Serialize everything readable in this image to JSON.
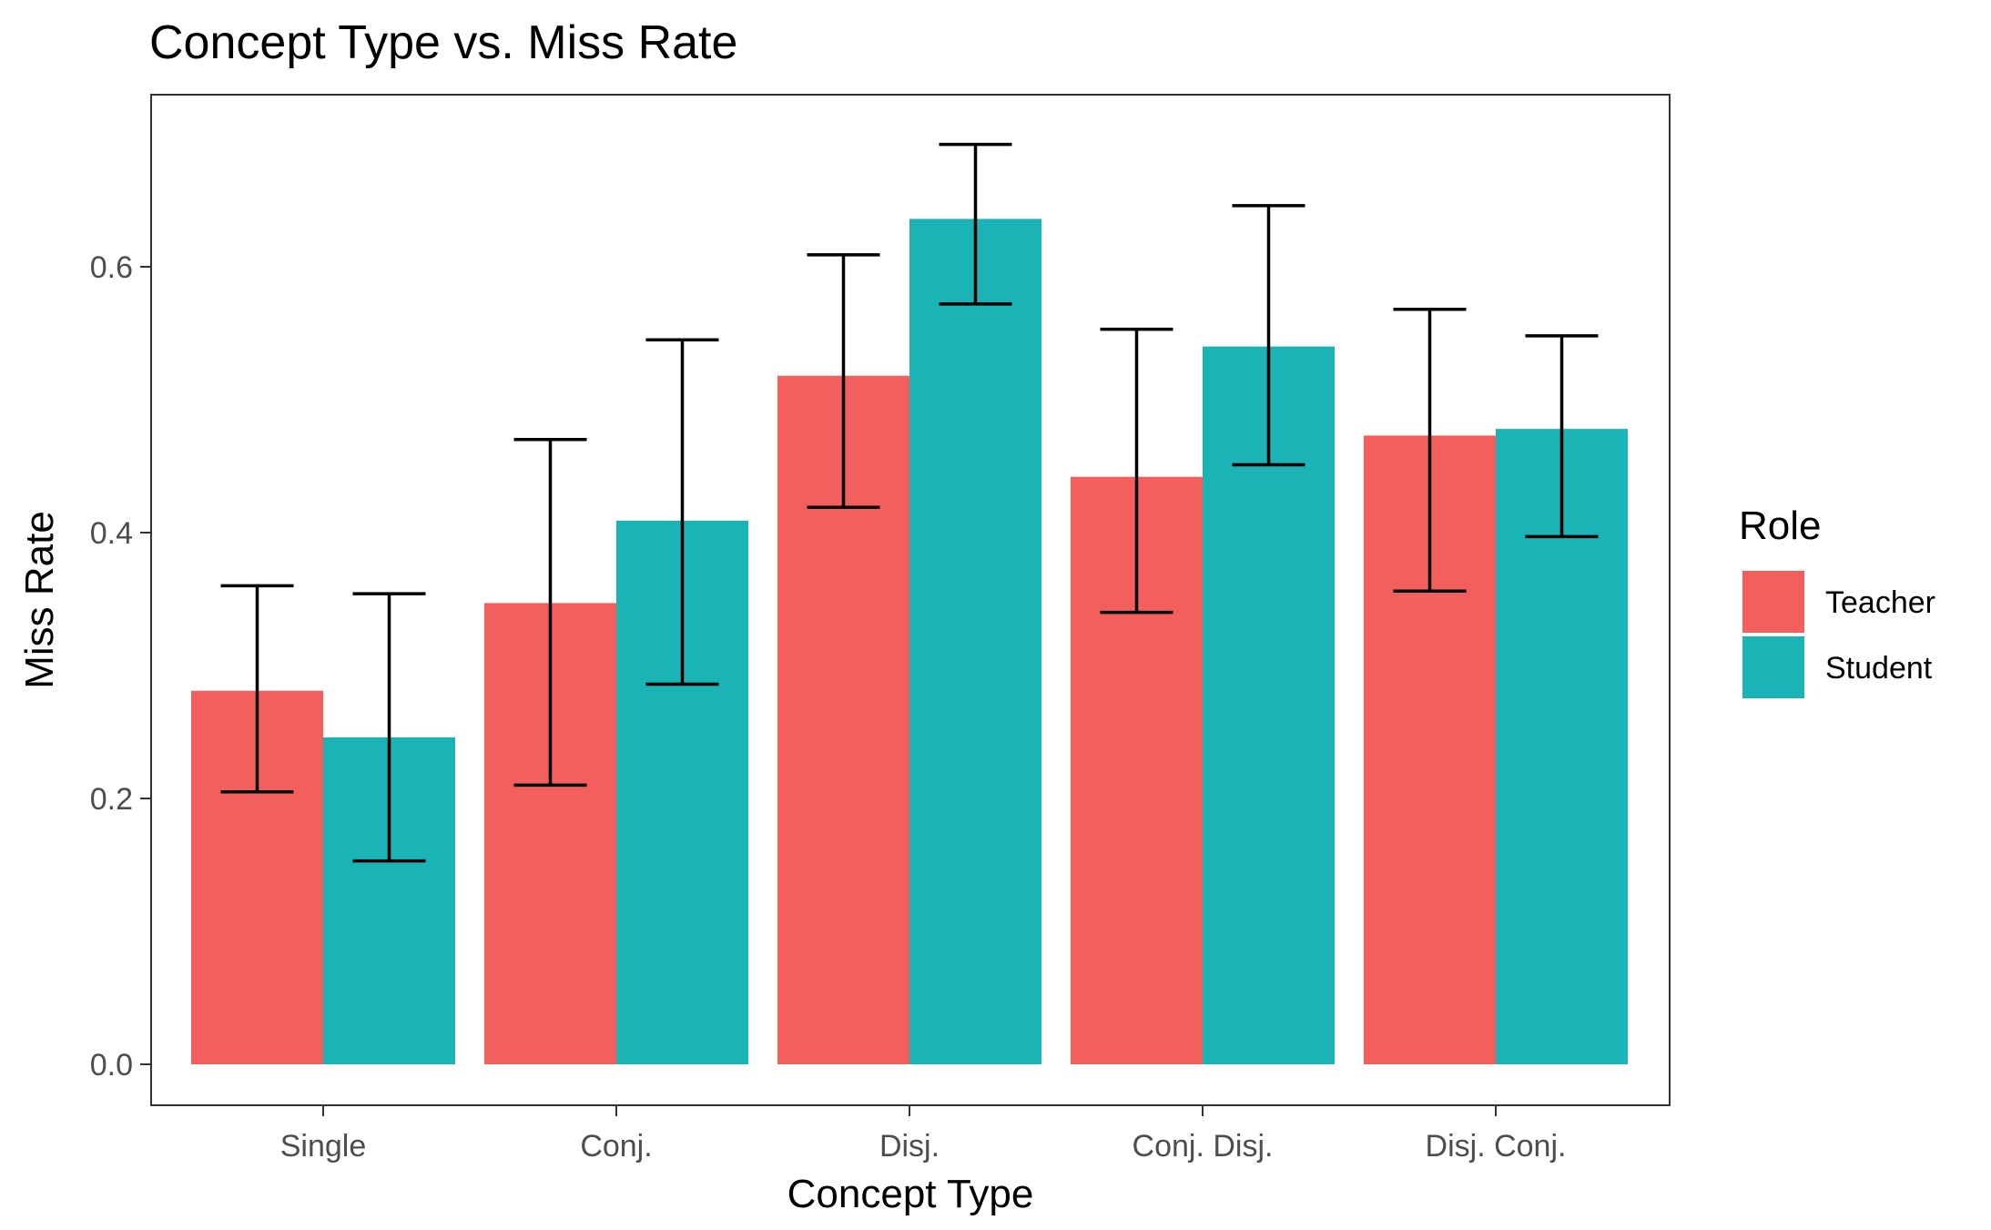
{
  "chart_data": {
    "type": "bar",
    "title": "Concept Type vs. Miss Rate",
    "xlabel": "Concept Type",
    "ylabel": "Miss Rate",
    "categories": [
      "Single",
      "Conj.",
      "Disj.",
      "Conj. Disj.",
      "Disj. Conj."
    ],
    "series": [
      {
        "name": "Teacher",
        "color": "#F25F5C",
        "values": [
          0.281,
          0.347,
          0.518,
          0.442,
          0.473
        ],
        "error_low": [
          0.205,
          0.21,
          0.419,
          0.34,
          0.356
        ],
        "error_high": [
          0.36,
          0.47,
          0.609,
          0.553,
          0.568
        ]
      },
      {
        "name": "Student",
        "color": "#1AB3B6",
        "values": [
          0.246,
          0.409,
          0.636,
          0.54,
          0.478
        ],
        "error_low": [
          0.153,
          0.286,
          0.572,
          0.451,
          0.397
        ],
        "error_high": [
          0.354,
          0.545,
          0.692,
          0.646,
          0.548
        ]
      }
    ],
    "ylim": [
      -0.032,
      0.725
    ],
    "yticks": [
      0.0,
      0.2,
      0.4,
      0.6
    ],
    "ytick_labels": [
      "0.0",
      "0.2",
      "0.4",
      "0.6"
    ],
    "legend": {
      "title": "Role",
      "position": "right"
    },
    "grid": false
  }
}
